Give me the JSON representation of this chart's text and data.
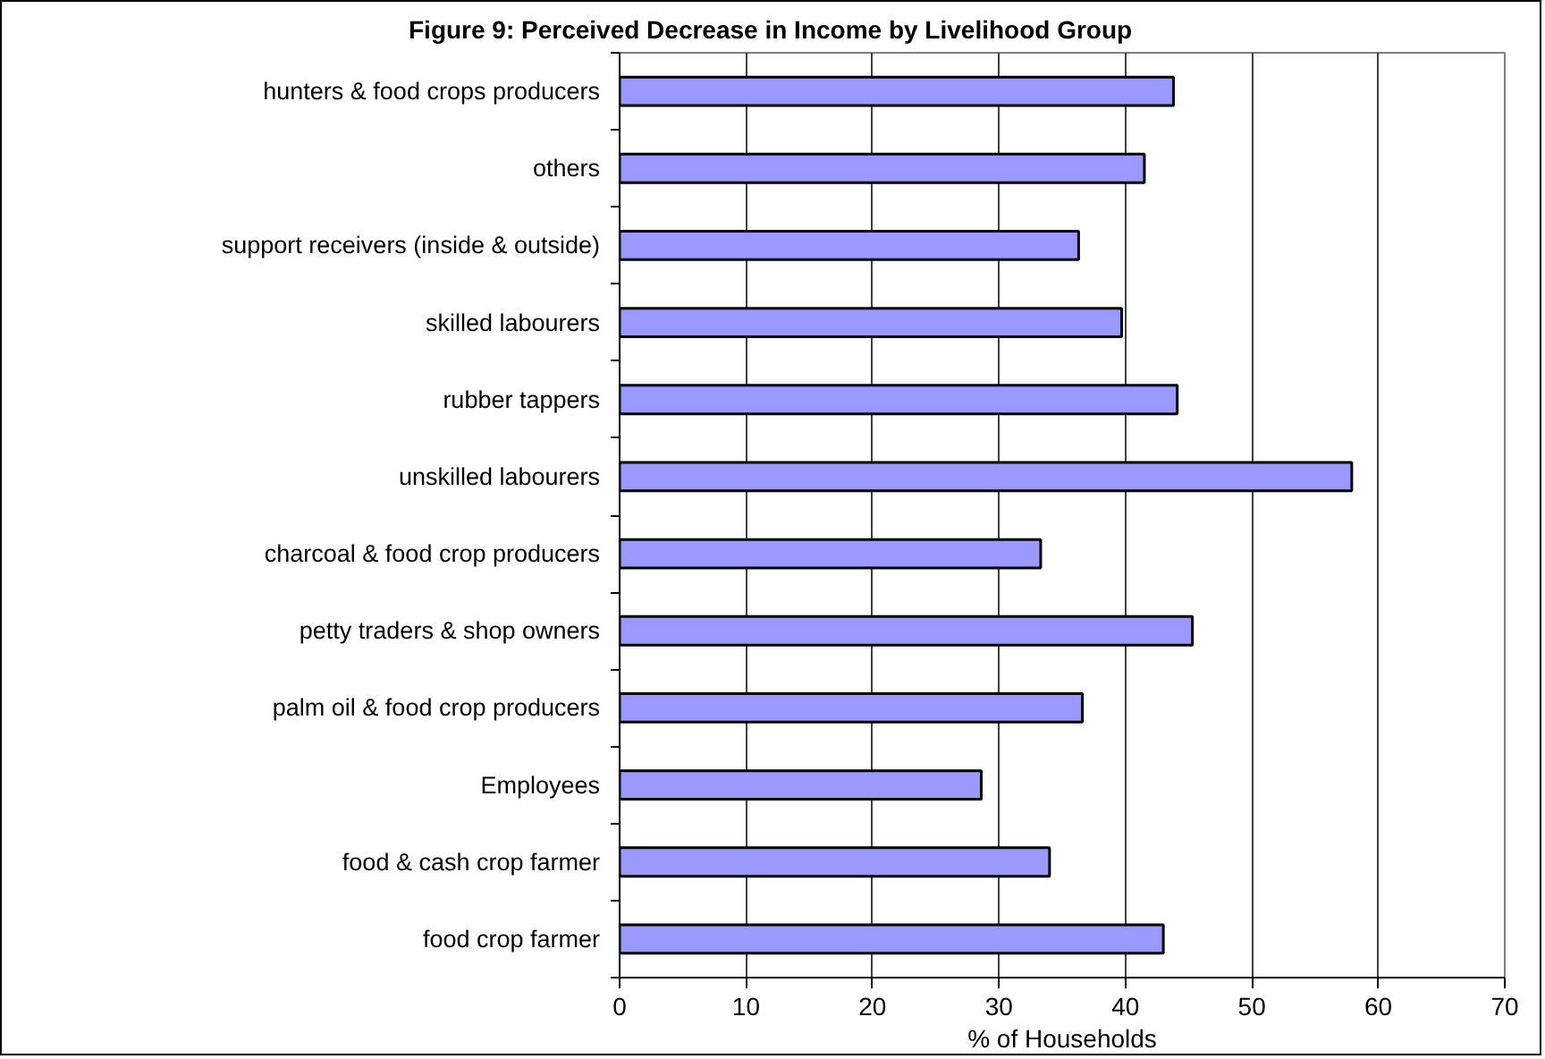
{
  "chart_data": {
    "type": "bar",
    "orientation": "horizontal",
    "title": "Figure 9: Perceived Decrease in Income by Livelihood Group",
    "xlabel": "% of Households",
    "categories": [
      "hunters & food crops producers",
      "others",
      "support receivers (inside & outside)",
      "skilled labourers",
      "rubber tappers",
      "unskilled labourers",
      "charcoal & food crop producers",
      "petty traders & shop owners",
      "palm oil & food crop producers",
      "Employees",
      "food & cash crop farmer",
      "food crop farmer"
    ],
    "values": [
      43.8,
      41.5,
      36.3,
      39.7,
      44.1,
      57.9,
      33.3,
      45.3,
      36.6,
      28.6,
      34.0,
      43.0
    ],
    "color": "#9999ff",
    "xlim": [
      0,
      70
    ],
    "xticks": [
      0,
      10,
      20,
      30,
      40,
      50,
      60,
      70
    ],
    "grid": "x"
  }
}
